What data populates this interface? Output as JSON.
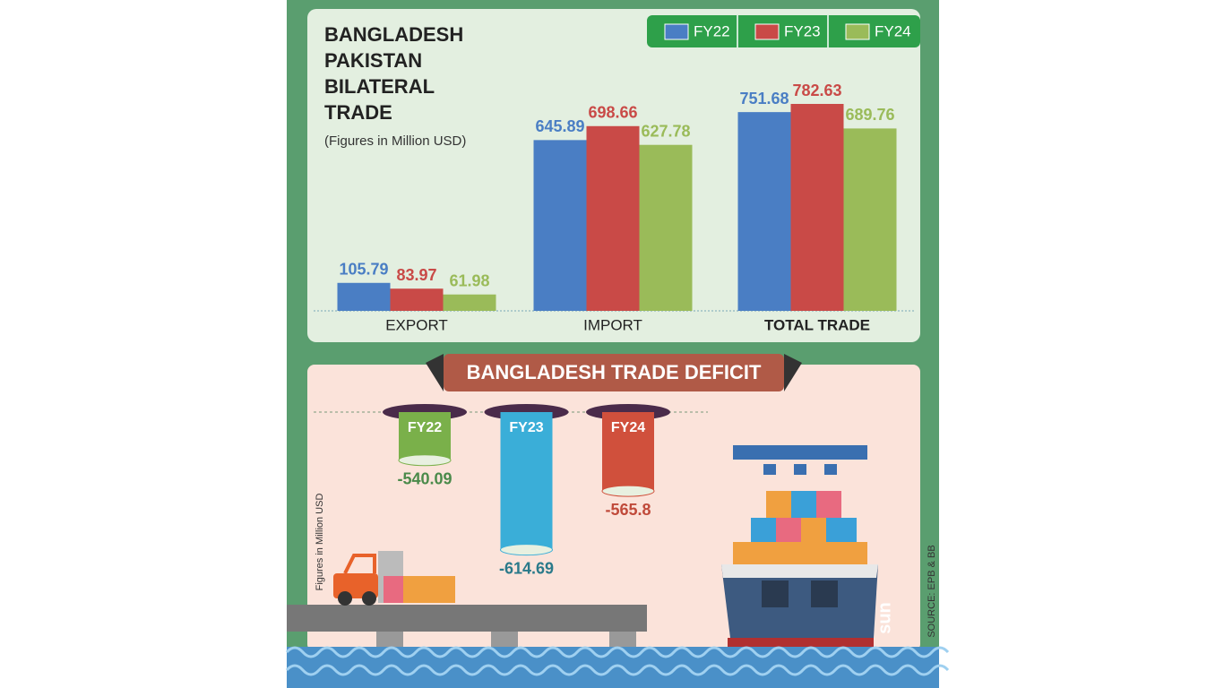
{
  "chart_data": [
    {
      "type": "bar",
      "title": "BANGLADESH PAKISTAN BILATERAL TRADE",
      "subtitle": "(Figures in Million USD)",
      "categories": [
        "EXPORT",
        "IMPORT",
        "TOTAL TRADE"
      ],
      "series": [
        {
          "name": "FY22",
          "color": "#4a7ec4",
          "values": [
            105.79,
            645.89,
            751.68
          ]
        },
        {
          "name": "FY23",
          "color": "#c94a47",
          "values": [
            83.97,
            698.66,
            782.63
          ]
        },
        {
          "name": "FY24",
          "color": "#9abb59",
          "values": [
            61.98,
            627.78,
            689.76
          ]
        }
      ],
      "legend": "top-right"
    },
    {
      "type": "hanging-cylinder",
      "title": "BANGLADESH TRADE DEFICIT",
      "y_label": "Figures in Million USD",
      "categories": [
        "FY22",
        "FY23",
        "FY24"
      ],
      "values": [
        -540.09,
        -614.69,
        -565.8
      ],
      "colors": [
        "#7ab04a",
        "#3aaed8",
        "#d0503c"
      ],
      "label_colors": [
        "#4a8a4a",
        "#2a7a8a",
        "#c04a3a"
      ],
      "ylim": [
        -500,
        -650
      ],
      "source": "SOURCE: EPB & BB",
      "ship_logo": "sun"
    }
  ]
}
